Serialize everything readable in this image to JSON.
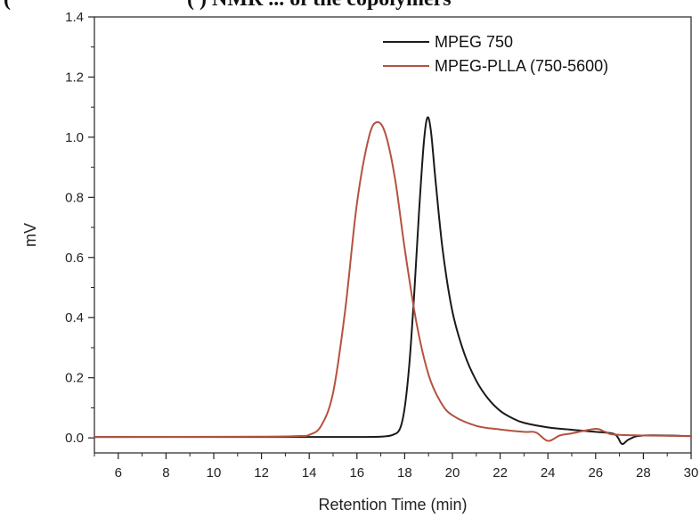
{
  "caption": {
    "part_a": "(",
    "part_b": "(   ) NMR ... of the copolymers"
  },
  "chart_data": {
    "type": "line",
    "title": "",
    "xlabel": "Retention Time (min)",
    "ylabel": "mV",
    "xlim": [
      5,
      30
    ],
    "ylim": [
      -0.05,
      1.4
    ],
    "xticks": [
      6,
      8,
      10,
      12,
      14,
      16,
      18,
      20,
      22,
      24,
      26,
      28,
      30
    ],
    "yticks": [
      0.0,
      0.2,
      0.4,
      0.6,
      0.8,
      1.0,
      1.2,
      1.4
    ],
    "ytick_labels": [
      "0.0",
      "0.2",
      "0.4",
      "0.6",
      "0.8",
      "1.0",
      "1.2",
      "1.4"
    ],
    "grid": false,
    "legend_position": "top-right",
    "series": [
      {
        "name": "MPEG 750",
        "color": "#1a1a1a",
        "points": [
          [
            5,
            0.003
          ],
          [
            14,
            0.003
          ],
          [
            16,
            0.003
          ],
          [
            17,
            0.004
          ],
          [
            17.5,
            0.01
          ],
          [
            17.8,
            0.03
          ],
          [
            18.0,
            0.1
          ],
          [
            18.2,
            0.25
          ],
          [
            18.4,
            0.48
          ],
          [
            18.6,
            0.75
          ],
          [
            18.8,
            0.98
          ],
          [
            18.95,
            1.065
          ],
          [
            19.1,
            1.02
          ],
          [
            19.3,
            0.85
          ],
          [
            19.6,
            0.62
          ],
          [
            20.0,
            0.42
          ],
          [
            20.5,
            0.28
          ],
          [
            21.0,
            0.19
          ],
          [
            21.5,
            0.13
          ],
          [
            22.0,
            0.09
          ],
          [
            22.5,
            0.066
          ],
          [
            23.0,
            0.05
          ],
          [
            24.0,
            0.035
          ],
          [
            25.0,
            0.027
          ],
          [
            26.0,
            0.02
          ],
          [
            26.8,
            0.012
          ],
          [
            27.1,
            -0.02
          ],
          [
            27.4,
            -0.005
          ],
          [
            28.0,
            0.008
          ],
          [
            30.0,
            0.006
          ]
        ]
      },
      {
        "name": "MPEG-PLLA (750-5600)",
        "color": "#b5523f",
        "points": [
          [
            5,
            0.003
          ],
          [
            12,
            0.004
          ],
          [
            13.5,
            0.006
          ],
          [
            14.0,
            0.01
          ],
          [
            14.5,
            0.04
          ],
          [
            15.0,
            0.15
          ],
          [
            15.5,
            0.42
          ],
          [
            16.0,
            0.78
          ],
          [
            16.5,
            1.0
          ],
          [
            16.85,
            1.05
          ],
          [
            17.2,
            1.01
          ],
          [
            17.6,
            0.86
          ],
          [
            18.0,
            0.63
          ],
          [
            18.5,
            0.38
          ],
          [
            19.0,
            0.21
          ],
          [
            19.5,
            0.12
          ],
          [
            20.0,
            0.075
          ],
          [
            21.0,
            0.04
          ],
          [
            22.0,
            0.028
          ],
          [
            23.0,
            0.02
          ],
          [
            23.5,
            0.018
          ],
          [
            24.0,
            -0.01
          ],
          [
            24.5,
            0.008
          ],
          [
            25.0,
            0.015
          ],
          [
            26.0,
            0.03
          ],
          [
            26.4,
            0.02
          ],
          [
            27.0,
            0.01
          ],
          [
            30.0,
            0.006
          ]
        ]
      }
    ]
  }
}
